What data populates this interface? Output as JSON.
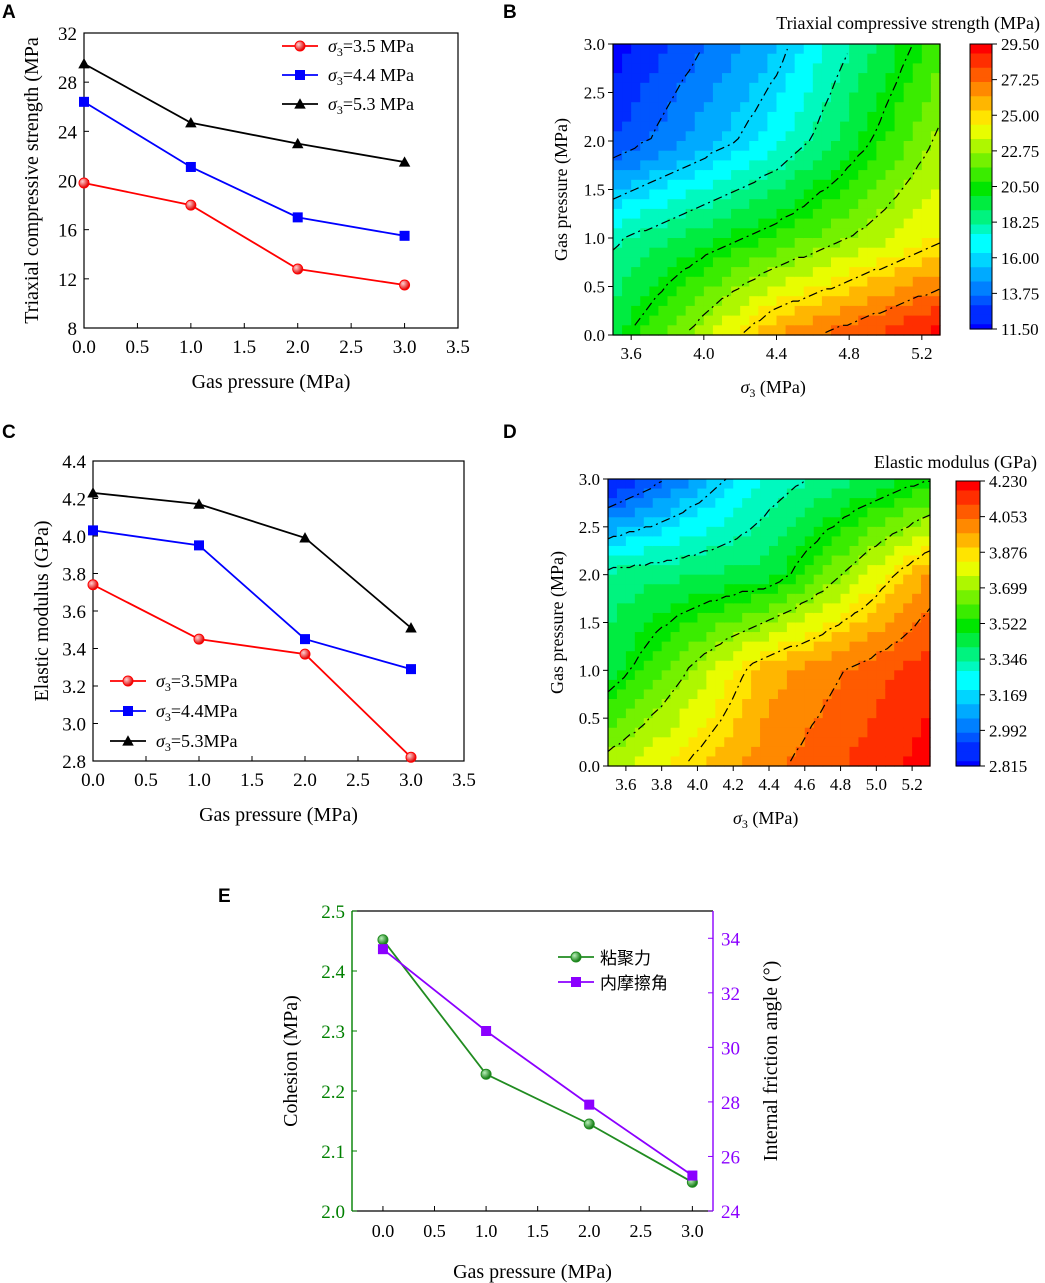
{
  "chart_data": [
    {
      "panel": "A",
      "type": "line",
      "xlabel": "Gas pressure (MPa)",
      "ylabel": "Triaxial compressive strength (MPa",
      "xlim": [
        0,
        3.5
      ],
      "ylim": [
        8,
        32
      ],
      "xticks": [
        "0.0",
        "0.5",
        "1.0",
        "1.5",
        "2.0",
        "2.5",
        "3.0",
        "3.5"
      ],
      "yticks": [
        "8",
        "12",
        "16",
        "20",
        "24",
        "28",
        "32"
      ],
      "x": [
        0,
        1,
        2,
        3
      ],
      "series": [
        {
          "sigma": "σ",
          "sub": "3",
          "rest": "=3.5 MPa",
          "color": "#ff0000",
          "marker": "circle",
          "values": [
            19.8,
            18.0,
            12.8,
            11.5
          ]
        },
        {
          "sigma": "σ",
          "sub": "3",
          "rest": "=4.4 MPa",
          "color": "#0000ff",
          "marker": "square",
          "values": [
            26.4,
            21.1,
            17.0,
            15.5
          ]
        },
        {
          "sigma": "σ",
          "sub": "3",
          "rest": "=5.3 MPa",
          "color": "#000000",
          "marker": "triangle",
          "values": [
            29.5,
            24.7,
            23.0,
            21.5
          ]
        }
      ],
      "legend": "top-right"
    },
    {
      "panel": "B",
      "type": "heatmap",
      "title": "Triaxial compressive strength (MPa)",
      "xlabel": "σ3 (MPa)",
      "xlabel_sigma": "σ",
      "xlabel_sub": "3",
      "xlabel_rest": " (MPa)",
      "ylabel": "Gas pressure (MPa)",
      "xlim": [
        3.5,
        5.3
      ],
      "ylim": [
        0,
        3
      ],
      "xticks": [
        "3.6",
        "4.0",
        "4.4",
        "4.8",
        "5.2"
      ],
      "yticks": [
        "0.0",
        "0.5",
        "1.0",
        "1.5",
        "2.0",
        "2.5",
        "3.0"
      ],
      "grid_x": [
        3.5,
        4.4,
        5.3
      ],
      "grid_y": [
        0,
        1,
        2,
        3
      ],
      "values": [
        [
          19.8,
          26.4,
          29.5
        ],
        [
          18.0,
          21.1,
          24.7
        ],
        [
          12.8,
          17.0,
          23.0
        ],
        [
          11.5,
          15.5,
          21.5
        ]
      ],
      "colorbar_ticks": [
        "11.50",
        "13.75",
        "16.00",
        "18.25",
        "20.50",
        "22.75",
        "25.00",
        "27.25",
        "29.50"
      ],
      "vmin": 11.5,
      "vmax": 29.5
    },
    {
      "panel": "C",
      "type": "line",
      "xlabel": "Gas pressure (MPa)",
      "ylabel": "Elastic modulus (GPa)",
      "xlim": [
        0,
        3.5
      ],
      "ylim": [
        2.8,
        4.4
      ],
      "xticks": [
        "0.0",
        "0.5",
        "1.0",
        "1.5",
        "2.0",
        "2.5",
        "3.0",
        "3.5"
      ],
      "yticks": [
        "2.8",
        "3.0",
        "3.2",
        "3.4",
        "3.6",
        "3.8",
        "4.0",
        "4.2",
        "4.4"
      ],
      "x": [
        0,
        1,
        2,
        3
      ],
      "series": [
        {
          "sigma": "σ",
          "sub": "3",
          "rest": "=3.5MPa",
          "color": "#ff0000",
          "marker": "circle",
          "values": [
            3.74,
            3.45,
            3.37,
            2.82
          ]
        },
        {
          "sigma": "σ",
          "sub": "3",
          "rest": "=4.4MPa",
          "color": "#0000ff",
          "marker": "square",
          "values": [
            4.03,
            3.95,
            3.45,
            3.29
          ]
        },
        {
          "sigma": "σ",
          "sub": "3",
          "rest": "=5.3MPa",
          "color": "#000000",
          "marker": "triangle",
          "values": [
            4.23,
            4.17,
            3.99,
            3.51
          ]
        }
      ],
      "legend": "bottom-left"
    },
    {
      "panel": "D",
      "type": "heatmap",
      "title": "Elastic modulus (GPa)",
      "xlabel": "σ3 (MPa)",
      "xlabel_sigma": "σ",
      "xlabel_sub": "3",
      "xlabel_rest": " (MPa)",
      "ylabel": "Gas pressure (MPa)",
      "xlim": [
        3.5,
        5.3
      ],
      "ylim": [
        0,
        3
      ],
      "xticks": [
        "3.6",
        "3.8",
        "4.0",
        "4.2",
        "4.4",
        "4.6",
        "4.8",
        "5.0",
        "5.2"
      ],
      "yticks": [
        "0.0",
        "0.5",
        "1.0",
        "1.5",
        "2.0",
        "2.5",
        "3.0"
      ],
      "grid_x": [
        3.5,
        4.4,
        5.3
      ],
      "grid_y": [
        0,
        1,
        2,
        3
      ],
      "values": [
        [
          3.74,
          4.03,
          4.23
        ],
        [
          3.45,
          3.95,
          4.17
        ],
        [
          3.37,
          3.45,
          3.99
        ],
        [
          2.82,
          3.29,
          3.51
        ]
      ],
      "colorbar_ticks": [
        "2.815",
        "2.992",
        "3.169",
        "3.346",
        "3.522",
        "3.699",
        "3.876",
        "4.053",
        "4.230"
      ],
      "vmin": 2.815,
      "vmax": 4.23
    },
    {
      "panel": "E",
      "type": "line",
      "xlabel": "Gas pressure (MPa)",
      "ylabel_left": "Cohesion (MPa)",
      "ylabel_right": "Internal friction angle (°)",
      "xlim": [
        -0.3,
        3.2
      ],
      "ylim_left": [
        2.0,
        2.5
      ],
      "ylim_right": [
        24,
        35
      ],
      "xticks": [
        "0.0",
        "0.5",
        "1.0",
        "1.5",
        "2.0",
        "2.5",
        "3.0"
      ],
      "yticks_left": [
        "2.0",
        "2.1",
        "2.2",
        "2.3",
        "2.4",
        "2.5"
      ],
      "yticks_right": [
        "24",
        "26",
        "28",
        "30",
        "32",
        "34"
      ],
      "left_color": "#008000",
      "right_color": "#8b00ff",
      "x": [
        0,
        1,
        2,
        3
      ],
      "series": [
        {
          "name": "粘聚力",
          "axis": "left",
          "color": "#218c21",
          "marker": "circle",
          "values": [
            2.452,
            2.228,
            2.145,
            2.048
          ]
        },
        {
          "name": "内摩擦角",
          "axis": "right",
          "color": "#8b00ff",
          "marker": "square",
          "values": [
            33.6,
            30.6,
            27.9,
            25.3
          ]
        }
      ],
      "legend": "top-right"
    }
  ]
}
